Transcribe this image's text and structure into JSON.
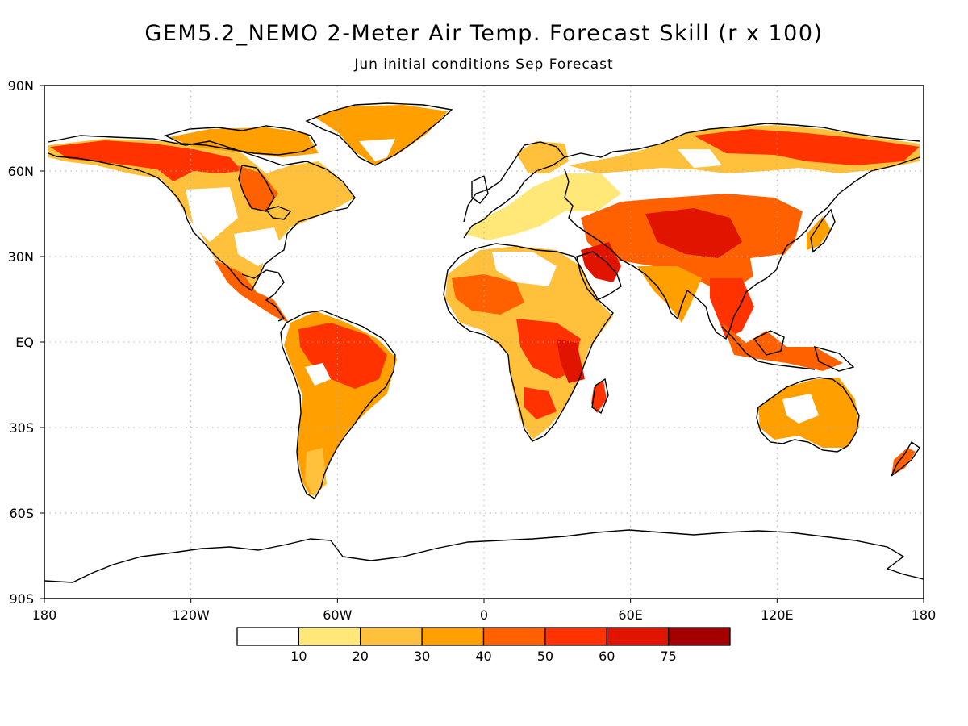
{
  "map": {
    "title": "GEM5.2_NEMO 2-Meter Air Temp. Forecast Skill (r x 100)",
    "subtitle": "Jun initial conditions  Sep Forecast",
    "lat_ticks": [
      {
        "lat": 90,
        "label": "90N"
      },
      {
        "lat": 60,
        "label": "60N"
      },
      {
        "lat": 30,
        "label": "30N"
      },
      {
        "lat": 0,
        "label": "EQ"
      },
      {
        "lat": -30,
        "label": "30S"
      },
      {
        "lat": -60,
        "label": "60S"
      },
      {
        "lat": -90,
        "label": "90S"
      }
    ],
    "lon_ticks": [
      {
        "lon": -180,
        "label": "180"
      },
      {
        "lon": -120,
        "label": "120W"
      },
      {
        "lon": -60,
        "label": "60W"
      },
      {
        "lon": 0,
        "label": "0"
      },
      {
        "lon": 60,
        "label": "60E"
      },
      {
        "lon": 120,
        "label": "120E"
      },
      {
        "lon": 180,
        "label": "180"
      }
    ],
    "grid": true,
    "projection": "equirectangular",
    "colors": {
      "land_outline": "#000000",
      "grid": "#b0b0b0"
    },
    "colorbar": {
      "labels": [
        "10",
        "20",
        "30",
        "40",
        "50",
        "60",
        "75"
      ],
      "colors": [
        "#ffffff",
        "#ffe878",
        "#ffc03c",
        "#ffa000",
        "#ff6000",
        "#ff3200",
        "#e11400",
        "#a50000"
      ]
    }
  }
}
